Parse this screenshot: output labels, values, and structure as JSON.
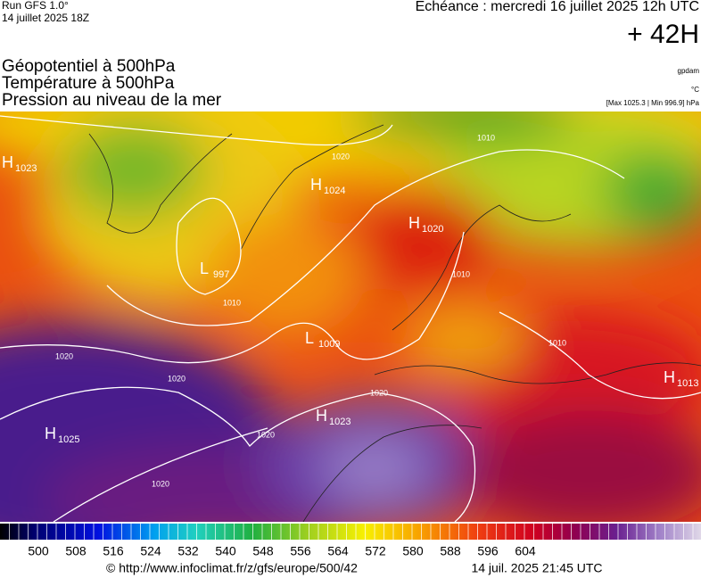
{
  "header": {
    "run": "Run GFS 1.0°",
    "run_date": "14 juillet 2025 18Z",
    "valid": "Echéance : mercredi 16 juillet 2025 12h UTC",
    "lead": "+ 42H"
  },
  "fields": [
    "Géopotentiel à 500hPa",
    "Température à 500hPa",
    "Pression au niveau de la mer"
  ],
  "units": [
    "gpdam",
    "°C",
    "[Max 1025.3 | Min 996.9] hPa"
  ],
  "centers": [
    {
      "kind": "H",
      "value": "1023"
    },
    {
      "kind": "H",
      "value": "1024"
    },
    {
      "kind": "L",
      "value": "997"
    },
    {
      "kind": "H",
      "value": "1020"
    },
    {
      "kind": "L",
      "value": "1009"
    },
    {
      "kind": "H",
      "value": "1023"
    },
    {
      "kind": "H",
      "value": "1025"
    },
    {
      "kind": "H",
      "value": "1013"
    }
  ],
  "isobar_labels": [
    "1020",
    "1010",
    "1010",
    "1010",
    "1010",
    "1020",
    "1020",
    "1020",
    "1020",
    "1020"
  ],
  "colorbar": {
    "ticks": [
      500,
      508,
      516,
      524,
      532,
      540,
      548,
      556,
      564,
      572,
      580,
      588,
      596,
      604
    ]
  },
  "footer": {
    "url": "© http://www.infoclimat.fr/z/gfs/europe/500/42",
    "timestamp": "14 juil. 2025 21:45 UTC"
  }
}
